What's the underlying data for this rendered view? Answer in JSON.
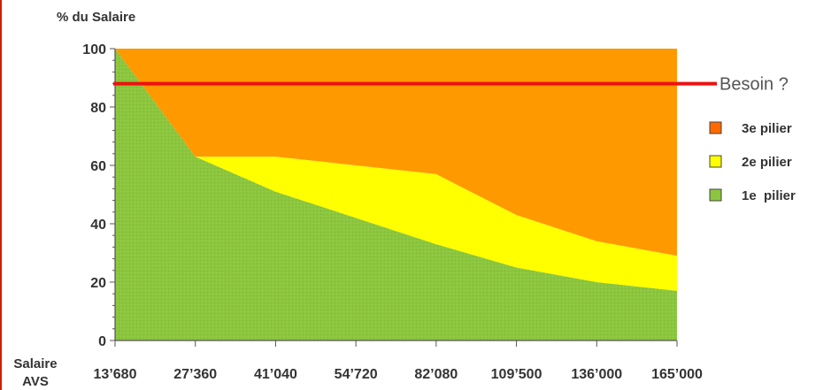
{
  "chart_data": {
    "type": "area",
    "ylabel": "% du Salaire",
    "xlabel": "Salaire AVS",
    "xlabel_lines": [
      "Salaire",
      "AVS"
    ],
    "categories": [
      "13’680",
      "27’360",
      "41’040",
      "54’720",
      "82’080",
      "109’500",
      "136’000",
      "165’000"
    ],
    "ylim": [
      0,
      100
    ],
    "yticks": [
      "0",
      "20",
      "40",
      "60",
      "80",
      "100"
    ],
    "stacked": true,
    "series": [
      {
        "name": "1e  pilier",
        "color": "#8cc63f",
        "values": [
          100,
          63,
          51,
          42,
          33,
          25,
          20,
          17
        ]
      },
      {
        "name": "2e pilier",
        "color": "#ffff00",
        "values": [
          0,
          0,
          12,
          18,
          24,
          18,
          14,
          12
        ]
      },
      {
        "name": "3e pilier",
        "color": "#ff9900",
        "values": [
          0,
          37,
          37,
          40,
          43,
          57,
          66,
          71
        ]
      }
    ],
    "reference_line": {
      "label": "Besoin ?",
      "value": 88,
      "color": "#ee1111"
    },
    "legend_order": [
      "3e pilier",
      "2e pilier",
      "1e  pilier"
    ],
    "legend_colors": {
      "3e pilier": "#ff6a00",
      "2e pilier": "#ffff00",
      "1e  pilier": "#8cc63f"
    },
    "legend_position": "right",
    "grid": false
  }
}
